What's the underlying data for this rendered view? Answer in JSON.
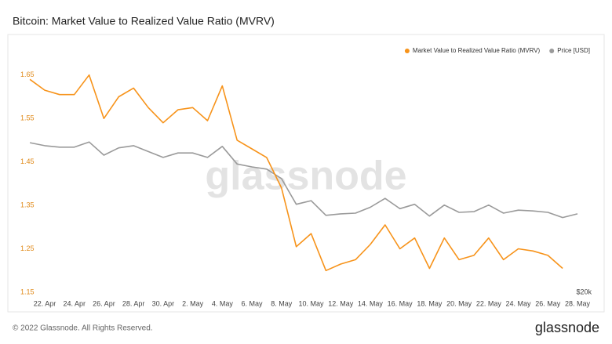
{
  "chart_data": {
    "type": "line",
    "title": "Bitcoin: Market Value to Realized Value Ratio (MVRV)",
    "watermark": "glassnode",
    "footer": "© 2022 Glassnode. All Rights Reserved.",
    "logo": "glassnode",
    "categories": [
      null,
      "22. Apr",
      null,
      "24. Apr",
      null,
      "26. Apr",
      null,
      "28. Apr",
      null,
      "30. Apr",
      null,
      "2. May",
      null,
      "4. May",
      null,
      "6. May",
      null,
      "8. May",
      null,
      "10. May",
      null,
      "12. May",
      null,
      "14. May",
      null,
      "16. May",
      null,
      "18. May",
      null,
      "20. May",
      null,
      "22. May",
      null,
      "24. May",
      null,
      "26. May",
      null,
      "28. May"
    ],
    "series": [
      {
        "name": "Market Value to Realized Value Ratio (MVRV)",
        "color": "#f7931a",
        "axis": "y",
        "values": [
          1.64,
          1.615,
          1.605,
          1.605,
          1.65,
          1.55,
          1.6,
          1.62,
          1.575,
          1.54,
          1.57,
          1.575,
          1.545,
          1.625,
          1.5,
          1.48,
          1.46,
          1.39,
          1.255,
          1.285,
          1.2,
          1.215,
          1.225,
          1.26,
          1.305,
          1.25,
          1.275,
          1.205,
          1.275,
          1.225,
          1.235,
          1.275,
          1.225,
          1.25,
          1.245,
          1.235,
          1.205,
          null
        ]
      },
      {
        "name": "Price [USD]",
        "color": "#9a9a9a",
        "axis": "y2",
        "values": [
          40400,
          40000,
          39800,
          39800,
          40500,
          38700,
          39700,
          40000,
          39200,
          38400,
          39000,
          39000,
          38400,
          39900,
          37500,
          37100,
          36800,
          35500,
          32000,
          32500,
          30500,
          30700,
          30800,
          31600,
          32800,
          31400,
          32000,
          30400,
          31900,
          30900,
          31000,
          31900,
          30800,
          31200,
          31100,
          30900,
          30200,
          30700
        ]
      }
    ],
    "ylim": [
      1.15,
      1.7
    ],
    "yticks": [
      1.15,
      1.25,
      1.35,
      1.45,
      1.55,
      1.65
    ],
    "y2lim": [
      20000,
      52600
    ],
    "y2ticks": [
      {
        "value": 20000,
        "label": "$20k"
      }
    ],
    "legend": "top-right"
  }
}
